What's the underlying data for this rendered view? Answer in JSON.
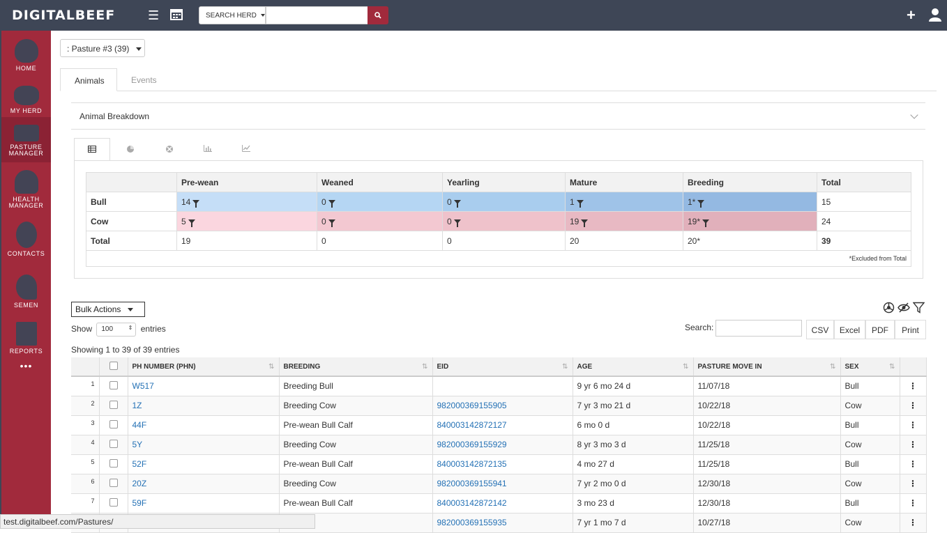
{
  "topbar": {
    "logo": "DIGITALBEEF",
    "search_herd_label": "SEARCH HERD",
    "search_placeholder": ""
  },
  "sidebar": {
    "items": [
      {
        "label": "HOME",
        "icon": "barn-icon"
      },
      {
        "label": "MY HERD",
        "icon": "cow-icon"
      },
      {
        "label": "PASTURE MANAGER",
        "icon": "pasture-icon"
      },
      {
        "label": "HEALTH MANAGER",
        "icon": "heart-icon"
      },
      {
        "label": "CONTACTS",
        "icon": "person-icon"
      },
      {
        "label": "SEMEN",
        "icon": "sperm-icon"
      },
      {
        "label": "REPORTS",
        "icon": "map-icon"
      }
    ],
    "more": "•••"
  },
  "pasture": {
    "selected": ": Pasture #3 (39)"
  },
  "tabs": [
    "Animals",
    "Events"
  ],
  "breakdown": {
    "title": "Animal Breakdown",
    "columns": [
      "",
      "Pre-wean",
      "Weaned",
      "Yearling",
      "Mature",
      "Breeding",
      "Total"
    ],
    "rows": [
      {
        "label": "Bull",
        "cells": [
          "14",
          "0",
          "0",
          "1",
          "1*"
        ],
        "total": "15"
      },
      {
        "label": "Cow",
        "cells": [
          "5",
          "0",
          "0",
          "19",
          "19*"
        ],
        "total": "24"
      },
      {
        "label": "Total",
        "cells": [
          "19",
          "0",
          "0",
          "20",
          "20*"
        ],
        "total": "39"
      }
    ],
    "footnote": "*Excluded from Total",
    "colors": {
      "bull": [
        "#c5def7",
        "#b5d6f3",
        "#a9cdee",
        "#9fc3e8",
        "#94b9e2"
      ],
      "cow": [
        "#fbd6df",
        "#f3c8d1",
        "#efc2cb",
        "#e8b9c3",
        "#e1b0bb"
      ]
    }
  },
  "controls": {
    "bulk_actions": "Bulk Actions",
    "show": "Show",
    "show_value": "100",
    "entries": "entries",
    "search_label": "Search:",
    "buttons": [
      "CSV",
      "Excel",
      "PDF",
      "Print"
    ],
    "showing": "Showing 1 to 39 of 39 entries"
  },
  "table": {
    "headers": [
      "PH NUMBER (PHN)",
      "BREEDING",
      "EID",
      "AGE",
      "PASTURE MOVE IN",
      "SEX"
    ],
    "rows": [
      {
        "n": "1",
        "phn": "W517",
        "breeding": "Breeding Bull",
        "eid": "",
        "age": "9 yr 6 mo 24 d",
        "move_in": "11/07/18",
        "sex": "Bull"
      },
      {
        "n": "2",
        "phn": "1Z",
        "breeding": "Breeding Cow",
        "eid": "982000369155905",
        "age": "7 yr 3 mo 21 d",
        "move_in": "10/22/18",
        "sex": "Cow"
      },
      {
        "n": "3",
        "phn": "44F",
        "breeding": "Pre-wean Bull Calf",
        "eid": "840003142872127",
        "age": "6 mo 0 d",
        "move_in": "10/22/18",
        "sex": "Bull"
      },
      {
        "n": "4",
        "phn": "5Y",
        "breeding": "Breeding Cow",
        "eid": "982000369155929",
        "age": "8 yr 3 mo 3 d",
        "move_in": "11/25/18",
        "sex": "Cow"
      },
      {
        "n": "5",
        "phn": "52F",
        "breeding": "Pre-wean Bull Calf",
        "eid": "840003142872135",
        "age": "4 mo 27 d",
        "move_in": "11/25/18",
        "sex": "Bull"
      },
      {
        "n": "6",
        "phn": "20Z",
        "breeding": "Breeding Cow",
        "eid": "982000369155941",
        "age": "7 yr 2 mo 0 d",
        "move_in": "12/30/18",
        "sex": "Cow"
      },
      {
        "n": "7",
        "phn": "59F",
        "breeding": "Pre-wean Bull Calf",
        "eid": "840003142872142",
        "age": "3 mo 23 d",
        "move_in": "12/30/18",
        "sex": "Bull"
      },
      {
        "n": "",
        "phn": "",
        "breeding": "g Cow",
        "eid": "982000369155935",
        "age": "7 yr 1 mo 7 d",
        "move_in": "10/27/18",
        "sex": "Cow"
      }
    ]
  },
  "status_url": "test.digitalbeef.com/Pastures/"
}
